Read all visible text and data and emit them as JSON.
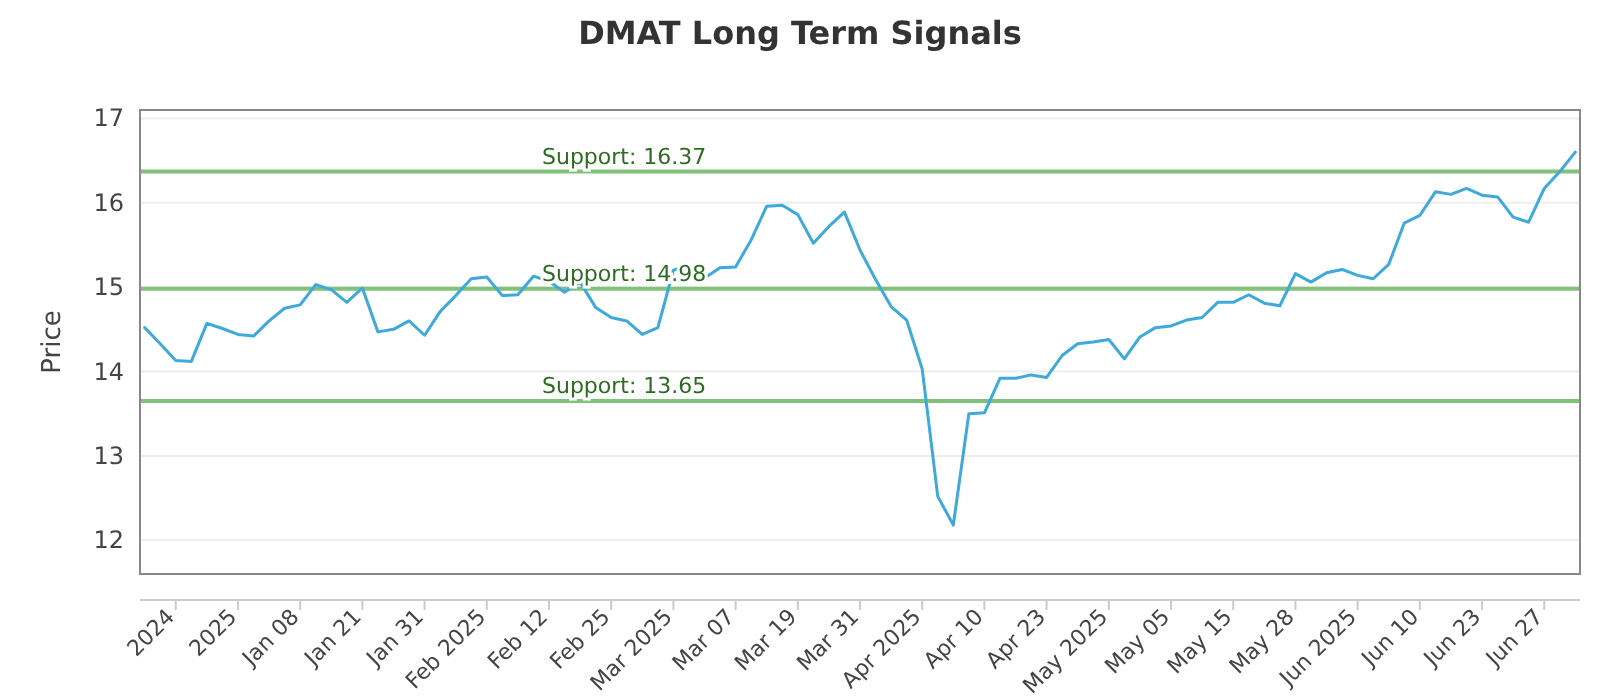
{
  "chart_data": {
    "type": "line",
    "title": "DMAT Long Term Signals",
    "ylabel": "Price",
    "categories": [
      null,
      null,
      "2024",
      null,
      null,
      null,
      "2025",
      null,
      null,
      null,
      "Jan 08",
      null,
      null,
      null,
      "Jan 21",
      null,
      null,
      null,
      "Jan 31",
      null,
      null,
      null,
      "Feb 2025",
      null,
      null,
      null,
      "Feb 12",
      null,
      null,
      null,
      "Feb 25",
      null,
      null,
      null,
      "Mar 2025",
      null,
      null,
      null,
      "Mar 07",
      null,
      null,
      null,
      "Mar 19",
      null,
      null,
      null,
      "Mar 31",
      null,
      null,
      null,
      "Apr 2025",
      null,
      null,
      null,
      "Apr 10",
      null,
      null,
      null,
      "Apr 23",
      null,
      null,
      null,
      "May 2025",
      null,
      null,
      null,
      "May 05",
      null,
      null,
      null,
      "May 15",
      null,
      null,
      null,
      "May 28",
      null,
      null,
      null,
      "Jun 2025",
      null,
      null,
      null,
      "Jun 10",
      null,
      null,
      null,
      "Jun 23",
      null,
      null,
      null,
      "Jun 27",
      null,
      null
    ],
    "series": [
      {
        "color": "#3fa9dc",
        "values": [
          14.52,
          14.33,
          14.13,
          14.12,
          14.57,
          14.51,
          14.44,
          14.42,
          14.6,
          14.75,
          14.79,
          15.03,
          14.97,
          14.82,
          14.99,
          14.47,
          14.5,
          14.6,
          14.43,
          14.71,
          14.9,
          15.1,
          15.12,
          14.9,
          14.91,
          15.13,
          15.07,
          14.94,
          15.06,
          14.76,
          14.64,
          14.6,
          14.44,
          14.52,
          15.2,
          15.26,
          15.11,
          15.23,
          15.24,
          15.56,
          15.96,
          15.97,
          15.86,
          15.52,
          15.72,
          15.89,
          15.44,
          15.09,
          14.77,
          14.61,
          14.03,
          12.52,
          12.18,
          13.5,
          13.51,
          13.92,
          13.92,
          13.96,
          13.93,
          14.19,
          14.33,
          14.35,
          14.38,
          14.15,
          14.41,
          14.52,
          14.54,
          14.61,
          14.64,
          14.82,
          14.82,
          14.91,
          14.81,
          14.78,
          15.16,
          15.06,
          15.17,
          15.21,
          15.14,
          15.1,
          15.27,
          15.76,
          15.85,
          16.13,
          16.1,
          16.17,
          16.09,
          16.07,
          15.83,
          15.77,
          16.17,
          16.37,
          16.6
        ]
      }
    ],
    "ylim": [
      11.6,
      17.1
    ],
    "yticks": [
      12,
      13,
      14,
      15,
      16,
      17
    ],
    "grid": "y",
    "marker": "none",
    "line_style": "solid",
    "ref_lines": [
      {
        "axis": "y",
        "value": 16.37,
        "label": "Support: 16.37",
        "color": "#82c17a"
      },
      {
        "axis": "y",
        "value": 14.98,
        "label": "Support: 14.98",
        "color": "#82c17a"
      },
      {
        "axis": "y",
        "value": 13.65,
        "label": "Support: 13.65",
        "color": "#82c17a"
      }
    ]
  }
}
